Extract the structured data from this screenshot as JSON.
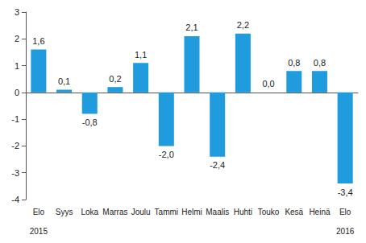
{
  "chart_data": {
    "type": "bar",
    "categories": [
      "Elo",
      "Syys",
      "Loka",
      "Marras",
      "Joulu",
      "Tammi",
      "Helmi",
      "Maalis",
      "Huhti",
      "Touko",
      "Kesä",
      "Heinä",
      "Elo"
    ],
    "values": [
      1.6,
      0.1,
      -0.8,
      0.2,
      1.1,
      -2.0,
      2.1,
      -2.4,
      2.2,
      0.0,
      0.8,
      0.8,
      -3.4
    ],
    "value_labels": [
      "1,6",
      "0,1",
      "-0,8",
      "0,2",
      "1,1",
      "-2,0",
      "2,1",
      "-2,4",
      "2,2",
      "0,0",
      "0,8",
      "0,8",
      "-3,4"
    ],
    "annotations": [
      {
        "text": "2015",
        "category_index": 0
      },
      {
        "text": "2016",
        "category_index": 12
      }
    ],
    "color": "#1f9bde",
    "ylim": [
      -4,
      3
    ],
    "yticks": [
      -4,
      -3,
      -2,
      -1,
      0,
      1,
      2,
      3
    ],
    "grid": false,
    "data_labels": true
  }
}
